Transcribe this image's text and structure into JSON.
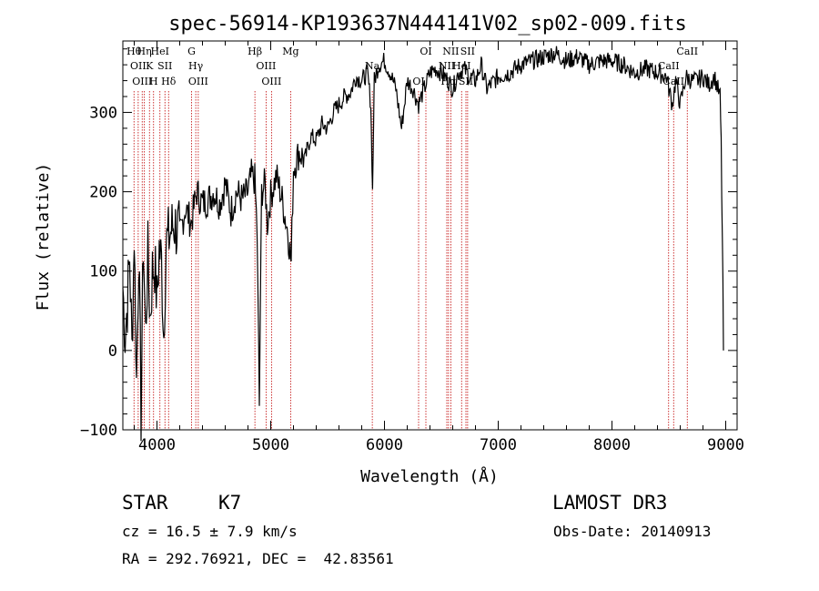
{
  "chart_data": {
    "type": "line",
    "title": "spec-56914-KP193637N444141V02_sp02-009.fits",
    "xlabel": "Wavelength (Å)",
    "ylabel": "Flux (relative)",
    "xlim": [
      3700,
      9100
    ],
    "ylim": [
      -100,
      390
    ],
    "xticks": [
      4000,
      5000,
      6000,
      7000,
      8000,
      9000
    ],
    "yticks": [
      -100,
      0,
      100,
      200,
      300
    ],
    "series": [
      {
        "name": "flux",
        "x": [
          3700,
          3720,
          3740,
          3760,
          3780,
          3800,
          3820,
          3840,
          3860,
          3880,
          3900,
          3920,
          3940,
          3960,
          3980,
          4000,
          4020,
          4040,
          4060,
          4080,
          4100,
          4120,
          4150,
          4200,
          4250,
          4300,
          4350,
          4400,
          4450,
          4500,
          4550,
          4600,
          4650,
          4700,
          4750,
          4800,
          4830,
          4860,
          4880,
          4900,
          4920,
          4950,
          4970,
          5000,
          5050,
          5100,
          5150,
          5180,
          5200,
          5250,
          5300,
          5350,
          5400,
          5450,
          5500,
          5550,
          5600,
          5650,
          5700,
          5750,
          5800,
          5850,
          5880,
          5895,
          5910,
          5950,
          6000,
          6050,
          6100,
          6150,
          6200,
          6250,
          6300,
          6350,
          6400,
          6450,
          6500,
          6560,
          6600,
          6650,
          6700,
          6750,
          6800,
          6850,
          6900,
          7000,
          7100,
          7200,
          7300,
          7400,
          7500,
          7600,
          7700,
          7800,
          7900,
          8000,
          8100,
          8200,
          8300,
          8400,
          8480,
          8500,
          8530,
          8560,
          8600,
          8650,
          8700,
          8750,
          8800,
          8850,
          8900,
          8950,
          8960,
          8975,
          8980
        ],
        "values": [
          80,
          20,
          60,
          120,
          0,
          150,
          -40,
          130,
          -80,
          140,
          20,
          120,
          40,
          100,
          110,
          60,
          130,
          110,
          20,
          135,
          140,
          150,
          160,
          145,
          180,
          160,
          200,
          185,
          190,
          200,
          185,
          210,
          175,
          200,
          190,
          200,
          220,
          215,
          150,
          -70,
          200,
          210,
          160,
          195,
          220,
          190,
          150,
          110,
          230,
          250,
          240,
          270,
          265,
          285,
          280,
          300,
          310,
          320,
          325,
          345,
          340,
          350,
          310,
          200,
          340,
          360,
          365,
          350,
          330,
          280,
          340,
          330,
          310,
          330,
          350,
          355,
          350,
          340,
          330,
          350,
          355,
          345,
          340,
          360,
          330,
          345,
          350,
          360,
          365,
          370,
          375,
          365,
          370,
          360,
          365,
          365,
          360,
          350,
          355,
          350,
          345,
          330,
          310,
          340,
          310,
          345,
          340,
          340,
          345,
          335,
          345,
          320,
          260,
          80,
          0
        ]
      }
    ],
    "line_markers": [
      {
        "wavelength": 3798,
        "label": "Hθ"
      },
      {
        "wavelength": 3835,
        "label": "OII"
      },
      {
        "wavelength": 3870,
        "label": "OIII"
      },
      {
        "wavelength": 3889,
        "label": "Hη"
      },
      {
        "wavelength": 3934,
        "label": "K"
      },
      {
        "wavelength": 3970,
        "label": "H"
      },
      {
        "wavelength": 4026,
        "label": "HeI"
      },
      {
        "wavelength": 4070,
        "label": "SII"
      },
      {
        "wavelength": 4102,
        "label": "Hδ"
      },
      {
        "wavelength": 4304,
        "label": "G"
      },
      {
        "wavelength": 4341,
        "label": "Hγ"
      },
      {
        "wavelength": 4363,
        "label": "OIII"
      },
      {
        "wavelength": 4861,
        "label": "Hβ"
      },
      {
        "wavelength": 4959,
        "label": "OIII"
      },
      {
        "wavelength": 5007,
        "label": "OIII"
      },
      {
        "wavelength": 5175,
        "label": "Mg"
      },
      {
        "wavelength": 5893,
        "label": "Na"
      },
      {
        "wavelength": 6300,
        "label": "OI"
      },
      {
        "wavelength": 6364,
        "label": "OI"
      },
      {
        "wavelength": 6548,
        "label": "NII"
      },
      {
        "wavelength": 6563,
        "label": "Hα"
      },
      {
        "wavelength": 6583,
        "label": "NII"
      },
      {
        "wavelength": 6678,
        "label": "HeI"
      },
      {
        "wavelength": 6716,
        "label": "SII"
      },
      {
        "wavelength": 6731,
        "label": "SII"
      },
      {
        "wavelength": 8498,
        "label": "CaII"
      },
      {
        "wavelength": 8542,
        "label": "CaII"
      },
      {
        "wavelength": 8662,
        "label": "CaII"
      }
    ]
  },
  "info": {
    "class": "STAR",
    "subclass": "K7",
    "survey": "LAMOST DR3",
    "redshift": "cz = 16.5 ± 7.9 km/s",
    "obs_date": "Obs-Date: 20140913",
    "coords": "RA = 292.76921, DEC =  42.83561"
  },
  "colors": {
    "spectrum": "#000000",
    "marker": "#c00000",
    "axis": "#000000"
  }
}
